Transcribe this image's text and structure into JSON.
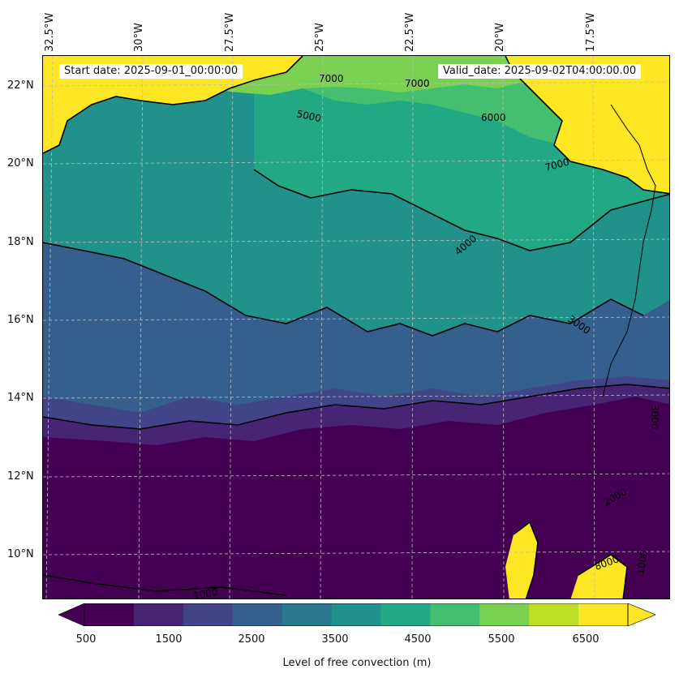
{
  "header": {
    "start_date": "Start date: 2025-09-01_00:00:00",
    "valid_date": "Valid_date: 2025-09-02T04:00:00.00"
  },
  "longitude_labels": [
    "32.5°W",
    "30°W",
    "27.5°W",
    "25°W",
    "22.5°W",
    "20°W",
    "17.5°W"
  ],
  "latitude_labels": [
    "22°N",
    "20°N",
    "18°N",
    "16°N",
    "14°N",
    "12°N",
    "10°N"
  ],
  "contour_labels": [
    "7000",
    "7000",
    "5000",
    "6000",
    "7000",
    "4000",
    "3000",
    "3000",
    "2000",
    "1000",
    "1000",
    "8000"
  ],
  "colorbar": {
    "title": "Level of free convection (m)",
    "tick_labels": [
      "500",
      "1500",
      "2500",
      "3500",
      "4500",
      "5500",
      "6500"
    ],
    "colors": [
      "#440154",
      "#482475",
      "#414487",
      "#355f8d",
      "#2a788e",
      "#21918c",
      "#22a884",
      "#44bf70",
      "#7ad151",
      "#bddf26",
      "#fde725"
    ],
    "under_color": "#440154",
    "over_color": "#fde725"
  },
  "map": {
    "land_color": "#fde725",
    "gridline_color": "#bbbbbb",
    "coastline_color": "#000000",
    "contour_line_color": "#000000"
  }
}
